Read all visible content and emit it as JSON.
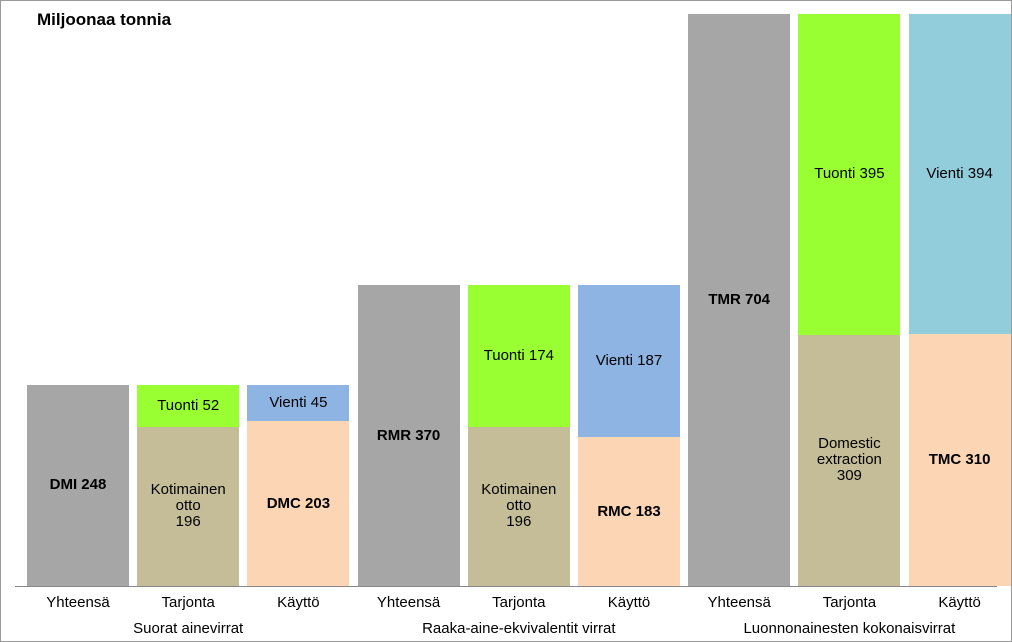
{
  "chart_data": {
    "type": "bar",
    "stacked": true,
    "title": "Miljoonaa tonnia",
    "ylim": [
      0,
      720
    ],
    "groups": [
      {
        "label": "Suorat ainevirrat",
        "bars": [
          {
            "category": "Yhteensä",
            "segments": [
              {
                "value": 248,
                "label": "DMI 248",
                "color": "#a6a6a6",
                "bold": true
              }
            ]
          },
          {
            "category": "Tarjonta",
            "segments": [
              {
                "value": 196,
                "label": "Kotimainen\notto\n196",
                "color": "#c4bd97",
                "bold": false
              },
              {
                "value": 52,
                "label": "Tuonti 52",
                "color": "#99ff33",
                "bold": false
              }
            ]
          },
          {
            "category": "Käyttö",
            "segments": [
              {
                "value": 203,
                "label": "DMC 203",
                "color": "#fcd5b5",
                "bold": true
              },
              {
                "value": 45,
                "label": "Vienti 45",
                "color": "#8db4e2",
                "bold": false
              }
            ]
          }
        ]
      },
      {
        "label": "Raaka-aine-ekvivalentit virrat",
        "bars": [
          {
            "category": "Yhteensä",
            "segments": [
              {
                "value": 370,
                "label": "RMR 370",
                "color": "#a6a6a6",
                "bold": true
              }
            ]
          },
          {
            "category": "Tarjonta",
            "segments": [
              {
                "value": 196,
                "label": "Kotimainen\notto\n196",
                "color": "#c4bd97",
                "bold": false
              },
              {
                "value": 174,
                "label": "Tuonti 174",
                "color": "#99ff33",
                "bold": false
              }
            ]
          },
          {
            "category": "Käyttö",
            "segments": [
              {
                "value": 183,
                "label": "RMC 183",
                "color": "#fcd5b5",
                "bold": true
              },
              {
                "value": 187,
                "label": "Vienti 187",
                "color": "#8db4e2",
                "bold": false
              }
            ]
          }
        ]
      },
      {
        "label": "Luonnonainesten kokonaisvirrat",
        "bars": [
          {
            "category": "Yhteensä",
            "segments": [
              {
                "value": 704,
                "label": "TMR 704",
                "color": "#a6a6a6",
                "bold": true
              }
            ]
          },
          {
            "category": "Tarjonta",
            "segments": [
              {
                "value": 309,
                "label": "Domestic\nextraction\n309",
                "color": "#c4bd97",
                "bold": false
              },
              {
                "value": 395,
                "label": "Tuonti 395",
                "color": "#99ff33",
                "bold": false
              }
            ]
          },
          {
            "category": "Käyttö",
            "segments": [
              {
                "value": 310,
                "label": "TMC 310",
                "color": "#fcd5b5",
                "bold": true
              },
              {
                "value": 394,
                "label": "Vienti 394",
                "color": "#92cddc",
                "bold": false
              }
            ]
          }
        ]
      }
    ]
  }
}
